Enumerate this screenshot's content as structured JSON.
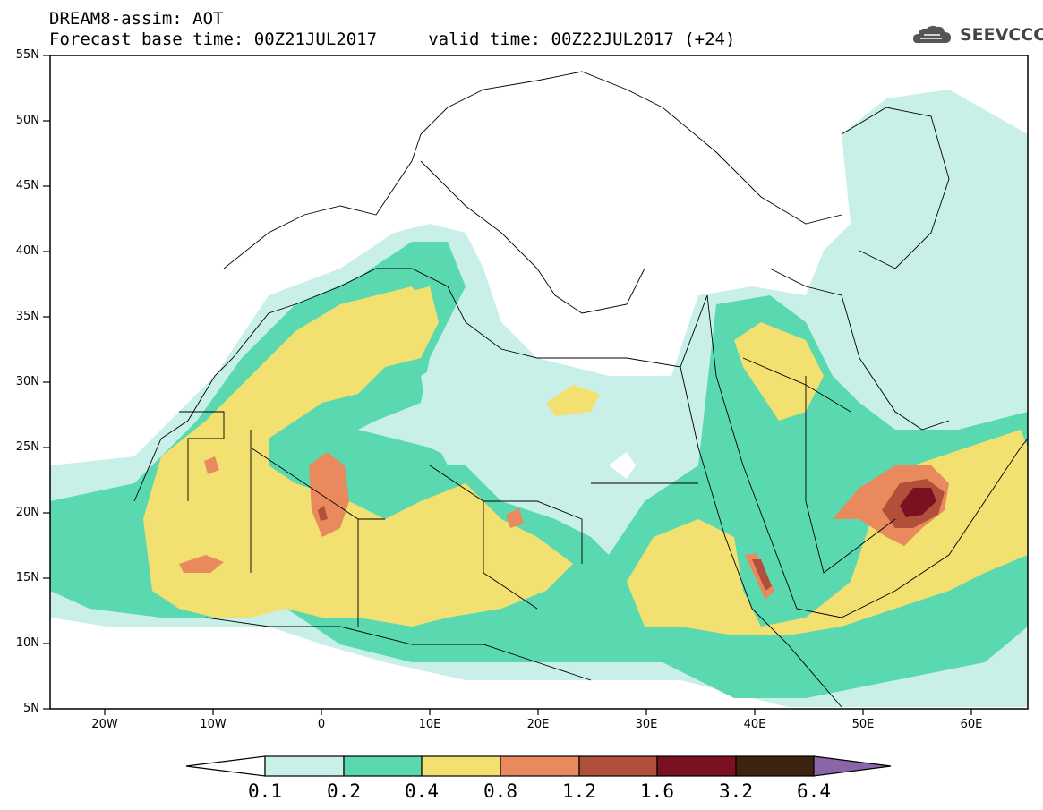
{
  "header": {
    "line1": "DREAM8-assim: AOT",
    "line2": "Forecast base time: 00Z21JUL2017     valid time: 00Z22JUL2017 (+24)"
  },
  "logo": {
    "text": "SEEVCCC",
    "icon": "cloud-icon"
  },
  "map": {
    "variable": "AOT",
    "latitude_labels": [
      "55N",
      "50N",
      "45N",
      "40N",
      "35N",
      "30N",
      "25N",
      "20N",
      "15N",
      "10N",
      "5N"
    ],
    "longitude_labels": [
      "20W",
      "10W",
      "0",
      "10E",
      "20E",
      "30E",
      "40E",
      "50E",
      "60E"
    ],
    "lat_range": [
      5,
      55
    ],
    "lon_range": [
      -25,
      65
    ],
    "highlights": [
      "Sahara dust 0.4–1.2 over West Africa and Sahel",
      "Maximum 1.6–3.2 over south-eastern Arabian Peninsula"
    ]
  },
  "colorbar": {
    "labels": [
      "0.1",
      "0.2",
      "0.4",
      "0.8",
      "1.2",
      "1.6",
      "3.2",
      "6.4"
    ],
    "colors": [
      "#c8f0e8",
      "#5ad9b0",
      "#f2e070",
      "#e88a5e",
      "#b0503a",
      "#7a1020",
      "#3d2410",
      "#8a66a8"
    ],
    "under_color": "#ffffff"
  }
}
